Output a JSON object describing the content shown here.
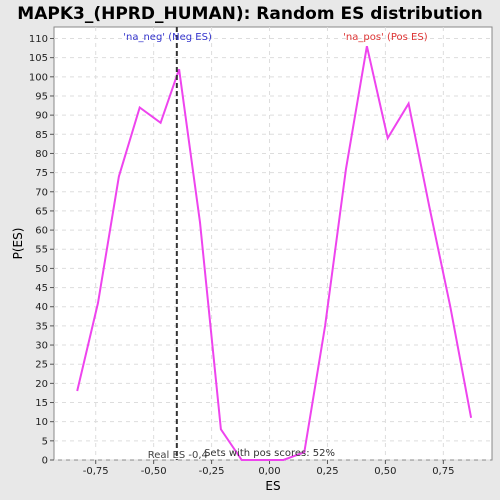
{
  "chart_data": {
    "type": "line",
    "title": "MAPK3_(HPRD_HUMAN): Random ES distribution",
    "xlabel": "ES",
    "ylabel": "P(ES)",
    "xlim": [
      -0.93,
      0.96
    ],
    "ylim": [
      0,
      113
    ],
    "x_ticks": [
      -0.75,
      -0.5,
      -0.25,
      0.0,
      0.25,
      0.5,
      0.75
    ],
    "x_tick_labels": [
      "-0,75",
      "-0,50",
      "-0,25",
      "0,00",
      "0,25",
      "0,50",
      "0,75"
    ],
    "y_ticks": [
      0,
      5,
      10,
      15,
      20,
      25,
      30,
      35,
      40,
      45,
      50,
      55,
      60,
      65,
      70,
      75,
      80,
      85,
      90,
      95,
      100,
      105,
      110
    ],
    "grid": true,
    "series": [
      {
        "color": "#ee44ee",
        "x": [
          -0.83,
          -0.74,
          -0.65,
          -0.56,
          -0.47,
          -0.39,
          -0.3,
          -0.21,
          -0.12,
          -0.03,
          0.06,
          0.15,
          0.24,
          0.33,
          0.42,
          0.51,
          0.6,
          0.69,
          0.78,
          0.87
        ],
        "y": [
          18,
          41,
          74,
          92,
          88,
          102,
          62,
          8,
          0,
          0,
          0,
          2,
          35,
          76,
          108,
          84,
          93,
          66,
          40,
          11
        ]
      }
    ],
    "real_es": {
      "x": -0.4,
      "label": "Real ES -0,4"
    },
    "annotations": {
      "neg_label": "'na_neg' (Neg ES)",
      "neg_color": "#3333cc",
      "pos_label": "'na_pos' (Pos ES)",
      "pos_color": "#dd3333",
      "pos_scores": "Sets with pos scores: 52%"
    }
  }
}
